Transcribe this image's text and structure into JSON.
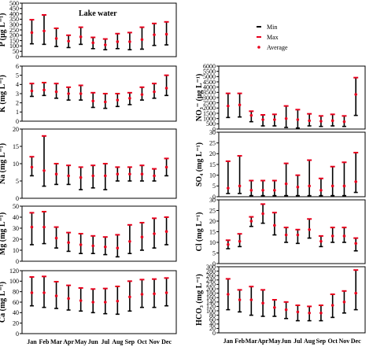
{
  "chart_data": {
    "type": "errorbar",
    "title": "Lake water",
    "legend": {
      "placement": "top-right",
      "entries": [
        {
          "label": "Min",
          "marker": "dash",
          "color": "#000000"
        },
        {
          "label": "Max",
          "marker": "dash",
          "color": "#e8001c"
        },
        {
          "label": "Average",
          "marker": "dot",
          "color": "#e8001c"
        }
      ]
    },
    "categories": [
      "Jan",
      "Feb",
      "Mar",
      "Apr",
      "May",
      "Jun",
      "Jul",
      "Aug",
      "Sep",
      "Oct",
      "Nov",
      "Dec"
    ],
    "x_tick_labels": [
      "Jan",
      "Feb",
      "Mar",
      "Apr",
      "May",
      "Jun",
      "Jul",
      "Aug",
      "Sep",
      "Oct",
      "Nov",
      "Dec"
    ],
    "colors": {
      "bar": "#000000",
      "max": "#e8001c",
      "average": "#e8001c",
      "axis": "#000000"
    },
    "panels": [
      {
        "id": "P",
        "ylabel": "P (μg L⁻¹)",
        "ylim": [
          0,
          500
        ],
        "yticks": [
          0,
          50,
          100,
          150,
          200,
          250,
          300,
          350,
          400,
          450,
          500
        ],
        "min": [
          120,
          115,
          95,
          85,
          115,
          75,
          65,
          75,
          65,
          70,
          105,
          110
        ],
        "max": [
          345,
          390,
          265,
          200,
          275,
          180,
          165,
          215,
          225,
          275,
          310,
          325
        ],
        "avg": [
          225,
          240,
          170,
          145,
          185,
          130,
          110,
          140,
          140,
          160,
          205,
          210
        ]
      },
      {
        "id": "NO3",
        "ylabel": "NO₃⁻ (μg L⁻¹)",
        "ylim": [
          0,
          6000
        ],
        "yticks": [
          0,
          500,
          1000,
          1500,
          2000,
          2500,
          3000,
          3500,
          4000,
          4500,
          5000,
          5500,
          6000
        ],
        "min": [
          1100,
          1150,
          700,
          300,
          300,
          150,
          100,
          300,
          250,
          300,
          250,
          1300
        ],
        "max": [
          3400,
          3400,
          1700,
          1350,
          1400,
          2200,
          1850,
          1450,
          1250,
          1400,
          1250,
          4900
        ],
        "avg": [
          2200,
          2300,
          1300,
          900,
          900,
          1000,
          900,
          800,
          750,
          800,
          700,
          3300
        ]
      },
      {
        "id": "K",
        "ylabel": "K (mg L⁻¹)",
        "ylim": [
          0,
          6
        ],
        "yticks": [
          0,
          1,
          2,
          3,
          4,
          5,
          6
        ],
        "min": [
          2.7,
          2.8,
          2.5,
          2.3,
          2.3,
          1.5,
          1.4,
          1.6,
          1.8,
          2.3,
          2.5,
          2.8
        ],
        "max": [
          4.1,
          4.2,
          4.1,
          3.7,
          3.9,
          3.1,
          3.0,
          3.0,
          3.1,
          3.7,
          4.1,
          5.0
        ],
        "avg": [
          3.3,
          3.4,
          3.2,
          3.0,
          3.0,
          2.2,
          2.1,
          2.3,
          2.5,
          2.9,
          3.2,
          3.6
        ]
      },
      {
        "id": "SO4",
        "ylabel": "SO₄ (mg L⁻¹)",
        "ylim": [
          0,
          30
        ],
        "yticks": [
          0,
          5,
          10,
          15,
          20,
          25,
          30
        ],
        "min": [
          1.5,
          1.5,
          0.5,
          0.5,
          0.5,
          0.5,
          0.5,
          0.5,
          0.5,
          0.5,
          0.5,
          2
        ],
        "max": [
          16.5,
          19,
          7.5,
          7.5,
          7.5,
          15.5,
          10,
          17,
          8.5,
          14,
          16,
          20.5
        ],
        "avg": [
          4,
          5,
          3,
          3,
          3,
          6,
          4.5,
          5,
          3,
          5,
          5,
          7
        ]
      },
      {
        "id": "Na",
        "ylabel": "Na (mg L⁻¹)",
        "ylim": [
          0,
          20
        ],
        "yticks": [
          0,
          5,
          10,
          15,
          20
        ],
        "min": [
          6.5,
          3.5,
          4,
          4,
          2.5,
          3,
          2.5,
          5,
          5,
          5,
          5,
          6.5
        ],
        "max": [
          12,
          18,
          10,
          9.5,
          9,
          9.5,
          10,
          9,
          9,
          9.5,
          8.5,
          11.5
        ],
        "avg": [
          9,
          8,
          7,
          6.5,
          6,
          6.5,
          6.5,
          7,
          7,
          7,
          6.5,
          9
        ]
      },
      {
        "id": "Cl",
        "ylabel": "Cl (mg L⁻¹)",
        "ylim": [
          0,
          30
        ],
        "yticks": [
          0,
          5,
          10,
          15,
          20,
          25,
          30
        ],
        "min": [
          7,
          8,
          17.5,
          19,
          13.5,
          10,
          9.5,
          12,
          8,
          10,
          10,
          6
        ],
        "max": [
          11,
          14,
          22,
          28,
          24,
          17,
          16,
          21,
          13,
          17,
          17,
          12
        ],
        "avg": [
          9,
          10.5,
          20,
          23.5,
          18,
          13.5,
          13.5,
          16,
          10.5,
          13,
          13,
          9.5
        ]
      },
      {
        "id": "Mg",
        "ylabel": "Mg (mg L⁻¹)",
        "ylim": [
          0,
          50
        ],
        "yticks": [
          0,
          10,
          20,
          30,
          40,
          50
        ],
        "min": [
          15,
          16,
          12,
          9,
          7,
          7,
          6,
          4,
          7,
          10,
          12,
          15
        ],
        "max": [
          44,
          45,
          31,
          26,
          25,
          23,
          22,
          24,
          33,
          35,
          39,
          40
        ],
        "avg": [
          31,
          31,
          21,
          17,
          15,
          14,
          13,
          12,
          18,
          22,
          25,
          27
        ]
      },
      {
        "id": "HCO3",
        "ylabel": "HCO₃ (mg L⁻¹)",
        "ylim": [
          0,
          300
        ],
        "yticks": [
          0,
          20,
          40,
          60,
          80,
          100,
          120,
          140,
          160,
          180,
          200,
          220,
          240,
          260,
          280,
          300
        ],
        "min": [
          105,
          95,
          80,
          75,
          75,
          65,
          55,
          55,
          55,
          70,
          90,
          105
        ],
        "max": [
          245,
          195,
          210,
          195,
          150,
          140,
          125,
          120,
          125,
          175,
          190,
          285
        ],
        "avg": [
          175,
          150,
          150,
          135,
          115,
          105,
          95,
          90,
          90,
          125,
          140,
          180
        ]
      },
      {
        "id": "Ca",
        "ylabel": "Ca (mg L⁻¹)",
        "ylim": [
          0,
          120
        ],
        "yticks": [
          0,
          20,
          40,
          60,
          80,
          100,
          120
        ],
        "min": [
          53,
          50,
          48,
          45,
          43,
          40,
          38,
          37,
          43,
          50,
          50,
          53
        ],
        "max": [
          108,
          109,
          99,
          92,
          87,
          85,
          86,
          90,
          100,
          103,
          104,
          106
        ],
        "avg": [
          78,
          78,
          72,
          67,
          63,
          60,
          60,
          62,
          70,
          75,
          76,
          78
        ]
      }
    ]
  }
}
